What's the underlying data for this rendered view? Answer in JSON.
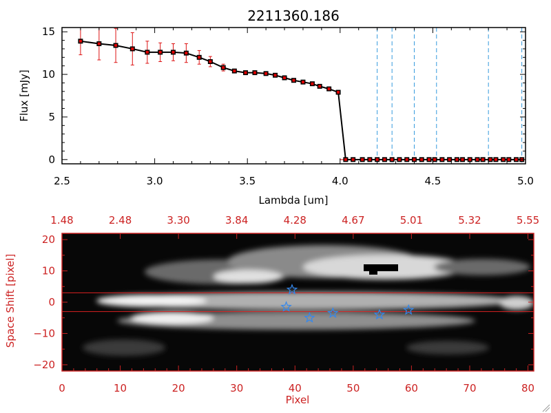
{
  "chart_data": [
    {
      "type": "line",
      "title": "2211360.186",
      "xlabel": "Lambda [um]",
      "ylabel": "Flux [mJy]",
      "xlim": [
        2.5,
        5.0
      ],
      "ylim": [
        -0.5,
        15.5
      ],
      "xticks": [
        2.5,
        3.0,
        3.5,
        4.0,
        4.5,
        5.0
      ],
      "xtick_labels": [
        "2.5",
        "3.0",
        "3.5",
        "4.0",
        "4.5",
        "5.0"
      ],
      "yticks": [
        0,
        5,
        10,
        15
      ],
      "ytick_labels": [
        "0",
        "5",
        "10",
        "15"
      ],
      "series": [
        {
          "name": "flux",
          "x": [
            2.6,
            2.7,
            2.79,
            2.88,
            2.96,
            3.03,
            3.1,
            3.17,
            3.24,
            3.3,
            3.37,
            3.43,
            3.49,
            3.54,
            3.6,
            3.65,
            3.7,
            3.75,
            3.8,
            3.85,
            3.89,
            3.94,
            3.99,
            4.03,
            4.07,
            4.12,
            4.16,
            4.2,
            4.24,
            4.28,
            4.32,
            4.36,
            4.4,
            4.44,
            4.48,
            4.51,
            4.55,
            4.59,
            4.63,
            4.66,
            4.7,
            4.74,
            4.77,
            4.81,
            4.84,
            4.88,
            4.91,
            4.95,
            4.98
          ],
          "y": [
            13.9,
            13.6,
            13.4,
            13.0,
            12.6,
            12.6,
            12.6,
            12.5,
            12.0,
            11.5,
            10.8,
            10.4,
            10.2,
            10.2,
            10.1,
            9.9,
            9.6,
            9.3,
            9.1,
            8.9,
            8.6,
            8.3,
            7.9,
            0,
            0,
            0,
            0,
            0,
            0,
            0,
            0,
            0,
            0,
            0,
            0,
            0,
            0,
            0,
            0,
            0,
            0,
            0,
            0,
            0,
            0,
            0,
            0,
            0,
            0
          ],
          "err": [
            1.6,
            1.9,
            2.0,
            1.9,
            1.3,
            1.1,
            1.0,
            1.1,
            0.8,
            0.6,
            0.4,
            0.2,
            0.1,
            0.1,
            0.1,
            0.1,
            0.1,
            0.1,
            0.1,
            0.1,
            0.1,
            0.1,
            0.1,
            0,
            0,
            0,
            0,
            0,
            0,
            0,
            0,
            0,
            0,
            0,
            0,
            0,
            0,
            0,
            0,
            0,
            0,
            0,
            0,
            0,
            0,
            0,
            0,
            0,
            0
          ]
        }
      ],
      "vlines": [
        4.2,
        4.28,
        4.4,
        4.52,
        4.8,
        4.98
      ],
      "colors": {
        "line": "#000000",
        "marker": "#e00000",
        "error": "#dd1111",
        "vline": "#3399dd",
        "zero": "#e00000"
      }
    },
    {
      "type": "heatmap",
      "xlabel": "Pixel",
      "ylabel": "Space Shift [pixel]",
      "xlim": [
        0,
        81
      ],
      "ylim": [
        -22,
        22
      ],
      "xticks": [
        0,
        10,
        20,
        30,
        40,
        50,
        60,
        70,
        80
      ],
      "xtick_labels": [
        "0",
        "10",
        "20",
        "30",
        "40",
        "50",
        "60",
        "70",
        "80"
      ],
      "yticks": [
        -20,
        -10,
        0,
        10,
        20
      ],
      "ytick_labels": [
        "−20",
        "−10",
        "0",
        "10",
        "20"
      ],
      "top_ticks": [
        0,
        10,
        20,
        30,
        40,
        50,
        60,
        70,
        80
      ],
      "top_tick_labels": [
        "1.48",
        "2.48",
        "3.30",
        "3.84",
        "4.28",
        "4.67",
        "5.01",
        "5.32",
        "5.55"
      ],
      "hlines": [
        3,
        -3
      ],
      "stars": [
        {
          "x": 39.5,
          "y": 4
        },
        {
          "x": 38.5,
          "y": -1.5
        },
        {
          "x": 42.5,
          "y": -5
        },
        {
          "x": 46.5,
          "y": -3.5
        },
        {
          "x": 54.5,
          "y": -4
        },
        {
          "x": 59.5,
          "y": -2.5
        }
      ],
      "colors": {
        "axis": "#cc2222",
        "hline": "#dd2222",
        "star": "#3388ee"
      }
    }
  ]
}
